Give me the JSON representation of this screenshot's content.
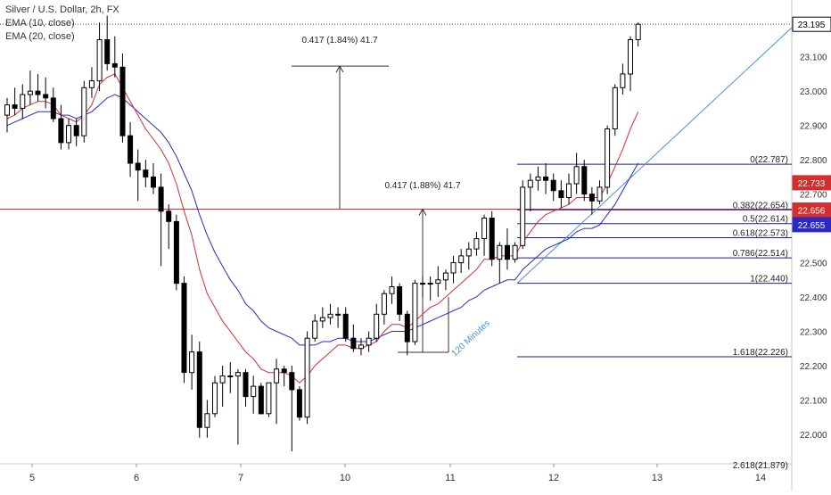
{
  "legend": {
    "symbol_line": "Silver / U.S. Dollar, 2h, FX",
    "ema10_line": "EMA (10, close)",
    "ema20_line": "EMA (20, close)"
  },
  "colors": {
    "up_candle": "#ffffff",
    "down_candle": "#000000",
    "ema10": "#d32f2f",
    "ema20": "#2a2ac0",
    "trendline": "#4a90d9",
    "fib": "#1f1f8c",
    "horizontal_level": "#d32f2f",
    "last_price_badge": "#000000"
  },
  "chart_data": {
    "type": "candlestick",
    "symbol": "Silver / U.S. Dollar, 2h, FX",
    "ylim": [
      21.94,
      23.25
    ],
    "yticks": [
      "23.100",
      "23.000",
      "22.900",
      "22.800",
      "22.700",
      "22.600",
      "22.500",
      "22.400",
      "22.300",
      "22.200",
      "22.100",
      "22.000"
    ],
    "xticks": [
      "5",
      "6",
      "7",
      "10",
      "11",
      "12",
      "13",
      "14"
    ],
    "candles": [
      {
        "o": 22.93,
        "h": 22.98,
        "l": 22.88,
        "c": 22.96
      },
      {
        "o": 22.96,
        "h": 23.01,
        "l": 22.93,
        "c": 22.95
      },
      {
        "o": 22.95,
        "h": 23.02,
        "l": 22.92,
        "c": 22.99
      },
      {
        "o": 22.99,
        "h": 23.06,
        "l": 22.96,
        "c": 23.0
      },
      {
        "o": 23.0,
        "h": 23.05,
        "l": 22.97,
        "c": 22.99
      },
      {
        "o": 22.99,
        "h": 23.04,
        "l": 22.95,
        "c": 22.98
      },
      {
        "o": 22.98,
        "h": 23.01,
        "l": 22.91,
        "c": 22.92
      },
      {
        "o": 22.92,
        "h": 22.96,
        "l": 22.83,
        "c": 22.85
      },
      {
        "o": 22.85,
        "h": 22.92,
        "l": 22.83,
        "c": 22.9
      },
      {
        "o": 22.9,
        "h": 22.92,
        "l": 22.84,
        "c": 22.87
      },
      {
        "o": 22.87,
        "h": 23.03,
        "l": 22.85,
        "c": 23.01
      },
      {
        "o": 23.01,
        "h": 23.07,
        "l": 22.98,
        "c": 23.03
      },
      {
        "o": 23.03,
        "h": 23.2,
        "l": 23.0,
        "c": 23.15
      },
      {
        "o": 23.15,
        "h": 23.22,
        "l": 23.06,
        "c": 23.08
      },
      {
        "o": 23.08,
        "h": 23.16,
        "l": 23.04,
        "c": 23.07
      },
      {
        "o": 23.07,
        "h": 23.11,
        "l": 22.85,
        "c": 22.87
      },
      {
        "o": 22.87,
        "h": 22.91,
        "l": 22.75,
        "c": 22.79
      },
      {
        "o": 22.79,
        "h": 22.83,
        "l": 22.68,
        "c": 22.77
      },
      {
        "o": 22.77,
        "h": 22.8,
        "l": 22.72,
        "c": 22.75
      },
      {
        "o": 22.75,
        "h": 22.79,
        "l": 22.7,
        "c": 22.72
      },
      {
        "o": 22.72,
        "h": 22.76,
        "l": 22.49,
        "c": 22.65
      },
      {
        "o": 22.65,
        "h": 22.67,
        "l": 22.54,
        "c": 22.62
      },
      {
        "o": 22.62,
        "h": 22.64,
        "l": 22.42,
        "c": 22.44
      },
      {
        "o": 22.44,
        "h": 22.46,
        "l": 22.15,
        "c": 22.18
      },
      {
        "o": 22.18,
        "h": 22.29,
        "l": 22.13,
        "c": 22.24
      },
      {
        "o": 22.24,
        "h": 22.27,
        "l": 21.99,
        "c": 22.02
      },
      {
        "o": 22.02,
        "h": 22.1,
        "l": 21.99,
        "c": 22.06
      },
      {
        "o": 22.06,
        "h": 22.17,
        "l": 22.05,
        "c": 22.15
      },
      {
        "o": 22.15,
        "h": 22.2,
        "l": 22.08,
        "c": 22.17
      },
      {
        "o": 22.17,
        "h": 22.21,
        "l": 22.12,
        "c": 22.17
      },
      {
        "o": 22.17,
        "h": 22.19,
        "l": 21.97,
        "c": 22.18
      },
      {
        "o": 22.18,
        "h": 22.19,
        "l": 22.08,
        "c": 22.11
      },
      {
        "o": 22.11,
        "h": 22.17,
        "l": 22.06,
        "c": 22.14
      },
      {
        "o": 22.14,
        "h": 22.15,
        "l": 22.06,
        "c": 22.06
      },
      {
        "o": 22.06,
        "h": 22.15,
        "l": 22.05,
        "c": 22.15
      },
      {
        "o": 22.15,
        "h": 22.22,
        "l": 22.03,
        "c": 22.19
      },
      {
        "o": 22.19,
        "h": 22.2,
        "l": 22.14,
        "c": 22.18
      },
      {
        "o": 22.18,
        "h": 22.2,
        "l": 21.95,
        "c": 22.13
      },
      {
        "o": 22.13,
        "h": 22.14,
        "l": 22.04,
        "c": 22.05
      },
      {
        "o": 22.05,
        "h": 22.3,
        "l": 22.03,
        "c": 22.28
      },
      {
        "o": 22.28,
        "h": 22.35,
        "l": 22.27,
        "c": 22.33
      },
      {
        "o": 22.33,
        "h": 22.37,
        "l": 22.31,
        "c": 22.34
      },
      {
        "o": 22.34,
        "h": 22.38,
        "l": 22.32,
        "c": 22.35
      },
      {
        "o": 22.35,
        "h": 22.37,
        "l": 22.31,
        "c": 22.35
      },
      {
        "o": 22.35,
        "h": 22.37,
        "l": 22.27,
        "c": 22.28
      },
      {
        "o": 22.28,
        "h": 22.32,
        "l": 22.24,
        "c": 22.25
      },
      {
        "o": 22.25,
        "h": 22.28,
        "l": 22.23,
        "c": 22.26
      },
      {
        "o": 22.26,
        "h": 22.3,
        "l": 22.24,
        "c": 22.28
      },
      {
        "o": 22.28,
        "h": 22.38,
        "l": 22.27,
        "c": 22.35
      },
      {
        "o": 22.35,
        "h": 22.42,
        "l": 22.32,
        "c": 22.41
      },
      {
        "o": 22.41,
        "h": 22.46,
        "l": 22.38,
        "c": 22.43
      },
      {
        "o": 22.43,
        "h": 22.44,
        "l": 22.33,
        "c": 22.35
      },
      {
        "o": 22.35,
        "h": 22.36,
        "l": 22.23,
        "c": 22.27
      },
      {
        "o": 22.27,
        "h": 22.45,
        "l": 22.26,
        "c": 22.44
      },
      {
        "o": 22.44,
        "h": 22.46,
        "l": 22.4,
        "c": 22.44
      },
      {
        "o": 22.44,
        "h": 22.46,
        "l": 22.39,
        "c": 22.44
      },
      {
        "o": 22.44,
        "h": 22.49,
        "l": 22.4,
        "c": 22.45
      },
      {
        "o": 22.45,
        "h": 22.48,
        "l": 22.42,
        "c": 22.47
      },
      {
        "o": 22.47,
        "h": 22.52,
        "l": 22.44,
        "c": 22.5
      },
      {
        "o": 22.5,
        "h": 22.54,
        "l": 22.47,
        "c": 22.52
      },
      {
        "o": 22.52,
        "h": 22.56,
        "l": 22.48,
        "c": 22.54
      },
      {
        "o": 22.54,
        "h": 22.59,
        "l": 22.52,
        "c": 22.57
      },
      {
        "o": 22.57,
        "h": 22.64,
        "l": 22.52,
        "c": 22.63
      },
      {
        "o": 22.63,
        "h": 22.65,
        "l": 22.49,
        "c": 22.51
      },
      {
        "o": 22.51,
        "h": 22.56,
        "l": 22.44,
        "c": 22.55
      },
      {
        "o": 22.55,
        "h": 22.6,
        "l": 22.48,
        "c": 22.51
      },
      {
        "o": 22.51,
        "h": 22.56,
        "l": 22.5,
        "c": 22.55
      },
      {
        "o": 22.55,
        "h": 22.74,
        "l": 22.54,
        "c": 22.72
      },
      {
        "o": 22.72,
        "h": 22.76,
        "l": 22.65,
        "c": 22.74
      },
      {
        "o": 22.74,
        "h": 22.78,
        "l": 22.71,
        "c": 22.75
      },
      {
        "o": 22.75,
        "h": 22.79,
        "l": 22.7,
        "c": 22.74
      },
      {
        "o": 22.74,
        "h": 22.76,
        "l": 22.68,
        "c": 22.71
      },
      {
        "o": 22.71,
        "h": 22.74,
        "l": 22.66,
        "c": 22.69
      },
      {
        "o": 22.69,
        "h": 22.76,
        "l": 22.67,
        "c": 22.73
      },
      {
        "o": 22.73,
        "h": 22.82,
        "l": 22.7,
        "c": 22.78
      },
      {
        "o": 22.78,
        "h": 22.8,
        "l": 22.68,
        "c": 22.7
      },
      {
        "o": 22.7,
        "h": 22.72,
        "l": 22.64,
        "c": 22.68
      },
      {
        "o": 22.68,
        "h": 22.74,
        "l": 22.67,
        "c": 22.72
      },
      {
        "o": 22.72,
        "h": 22.9,
        "l": 22.7,
        "c": 22.89
      },
      {
        "o": 22.89,
        "h": 23.02,
        "l": 22.87,
        "c": 23.01
      },
      {
        "o": 23.01,
        "h": 23.08,
        "l": 22.99,
        "c": 23.05
      },
      {
        "o": 23.05,
        "h": 23.16,
        "l": 23.0,
        "c": 23.15
      },
      {
        "o": 23.15,
        "h": 23.2,
        "l": 23.13,
        "c": 23.195
      }
    ],
    "ema10": [
      22.92,
      22.93,
      22.95,
      22.96,
      22.97,
      22.97,
      22.96,
      22.93,
      22.92,
      22.91,
      22.93,
      22.96,
      23.02,
      23.04,
      23.05,
      23.01,
      22.97,
      22.93,
      22.89,
      22.86,
      22.83,
      22.79,
      22.73,
      22.65,
      22.58,
      22.48,
      22.41,
      22.37,
      22.33,
      22.3,
      22.27,
      22.24,
      22.22,
      22.19,
      22.18,
      22.18,
      22.18,
      22.17,
      22.15,
      22.17,
      22.2,
      22.22,
      22.24,
      22.26,
      22.26,
      22.25,
      22.25,
      22.26,
      22.27,
      22.3,
      22.32,
      22.32,
      22.31,
      22.33,
      22.35,
      22.37,
      22.38,
      22.4,
      22.42,
      22.44,
      22.46,
      22.48,
      22.51,
      22.51,
      22.52,
      22.52,
      22.52,
      22.56,
      22.59,
      22.62,
      22.64,
      22.65,
      22.66,
      22.67,
      22.69,
      22.69,
      22.69,
      22.69,
      22.73,
      22.78,
      22.83,
      22.89,
      22.94
    ],
    "ema20": [
      22.9,
      22.91,
      22.92,
      22.93,
      22.94,
      22.94,
      22.94,
      22.93,
      22.93,
      22.92,
      22.93,
      22.94,
      22.96,
      22.98,
      22.99,
      22.98,
      22.96,
      22.94,
      22.92,
      22.9,
      22.88,
      22.85,
      22.81,
      22.76,
      22.71,
      22.64,
      22.58,
      22.53,
      22.49,
      22.45,
      22.42,
      22.38,
      22.36,
      22.33,
      22.31,
      22.3,
      22.29,
      22.28,
      22.26,
      22.26,
      22.26,
      22.27,
      22.27,
      22.28,
      22.28,
      22.27,
      22.27,
      22.27,
      22.28,
      22.29,
      22.3,
      22.3,
      22.3,
      22.31,
      22.32,
      22.33,
      22.34,
      22.35,
      22.36,
      22.37,
      22.39,
      22.4,
      22.42,
      22.43,
      22.44,
      22.45,
      22.45,
      22.48,
      22.5,
      22.52,
      22.54,
      22.55,
      22.56,
      22.57,
      22.59,
      22.6,
      22.6,
      22.61,
      22.64,
      22.67,
      22.71,
      22.75,
      22.79
    ],
    "fib_levels": [
      {
        "label": "0(22.787)",
        "value": 22.787
      },
      {
        "label": "0.382(22.654)",
        "value": 22.654
      },
      {
        "label": "0.5(22.614)",
        "value": 22.614
      },
      {
        "label": "0.618(22.573)",
        "value": 22.573
      },
      {
        "label": "0.786(22.514)",
        "value": 22.514
      },
      {
        "label": "1(22.440)",
        "value": 22.44
      },
      {
        "label": "1.618(22.226)",
        "value": 22.226
      }
    ],
    "horizontal_level": 22.656,
    "price_badges": [
      {
        "text": "23.195",
        "value": 23.195,
        "style": "white"
      },
      {
        "text": "22.733",
        "value": 22.733,
        "style": "red"
      },
      {
        "text": "22.656",
        "value": 22.656,
        "style": "red"
      },
      {
        "text": "22.655",
        "value": 22.655,
        "style": "blue"
      }
    ],
    "measure_labels": [
      {
        "text": "0.417 (1.84%) 41.7"
      },
      {
        "text": "0.417 (1.88%) 41.7"
      }
    ],
    "trendline_label": "120 Minutes"
  }
}
